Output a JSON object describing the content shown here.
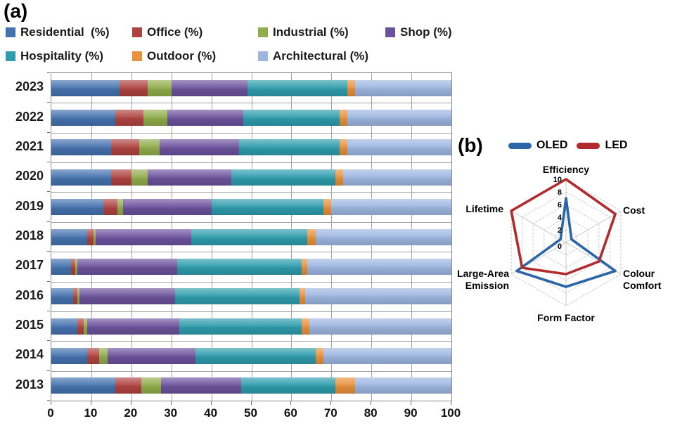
{
  "figure": {
    "panel_a_label": "(a)",
    "panel_b_label": "(b)"
  },
  "chart_data": [
    {
      "type": "bar",
      "subtype": "stacked-horizontal",
      "panel_label": "(a)",
      "legend_position": "top",
      "grid": true,
      "xlim": [
        0,
        100
      ],
      "x_ticks": [
        0,
        10,
        20,
        30,
        40,
        50,
        60,
        70,
        80,
        90,
        100
      ],
      "categories": [
        "2023",
        "2022",
        "2021",
        "2020",
        "2019",
        "2018",
        "2017",
        "2016",
        "2015",
        "2014",
        "2013"
      ],
      "series": [
        {
          "name": "Residential  (%)",
          "color": "#4472AE",
          "values": [
            17,
            16,
            15,
            15,
            13,
            9,
            5,
            5.5,
            6.5,
            9,
            16
          ]
        },
        {
          "name": "Office (%)",
          "color": "#AE4340",
          "values": [
            7,
            7,
            7,
            5,
            3.5,
            1.5,
            1,
            1,
            1.5,
            3,
            6.5
          ]
        },
        {
          "name": "Industrial (%)",
          "color": "#90AC4B",
          "values": [
            6,
            6,
            5,
            4,
            1.5,
            0.5,
            0.5,
            0.5,
            1,
            2,
            5
          ]
        },
        {
          "name": "Shop (%)",
          "color": "#6B529C",
          "values": [
            19,
            19,
            20,
            21,
            22,
            24,
            25,
            24,
            23,
            22,
            20
          ]
        },
        {
          "name": "Hospitality (%)",
          "color": "#2E9CAC",
          "values": [
            25,
            24,
            25,
            26,
            28,
            29,
            31,
            31,
            30.5,
            30,
            23.5
          ]
        },
        {
          "name": "Outdoor (%)",
          "color": "#E8903A",
          "values": [
            2,
            2,
            2,
            2,
            2,
            2,
            1.5,
            1.5,
            2,
            2,
            5
          ]
        },
        {
          "name": "Architectural (%)",
          "color": "#9DB6E0",
          "values": [
            24,
            26,
            26,
            27,
            30,
            34,
            36,
            36.5,
            35.5,
            32,
            24
          ]
        }
      ]
    },
    {
      "type": "radar",
      "panel_label": "(b)",
      "legend_position": "top",
      "rlim": [
        0,
        10
      ],
      "r_ticks": [
        0,
        2,
        4,
        6,
        8,
        10
      ],
      "axes": [
        "Efficiency",
        "Cost",
        "Colour Comfort",
        "Form Factor",
        "Large-Area Emission",
        "Lifetime"
      ],
      "series": [
        {
          "name": "OLED",
          "color": "#2B67A8",
          "values": [
            7,
            1,
            9,
            7,
            9,
            1
          ]
        },
        {
          "name": "LED",
          "color": "#B02A2E",
          "values": [
            10,
            9,
            6,
            5,
            8,
            10
          ]
        }
      ]
    }
  ]
}
